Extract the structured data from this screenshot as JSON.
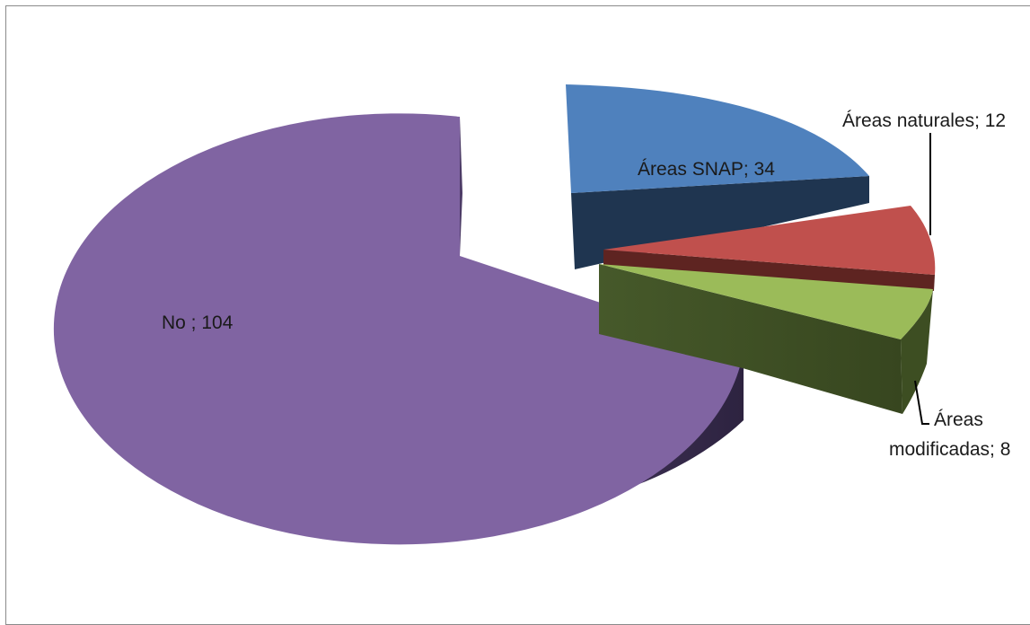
{
  "chart_data": {
    "type": "pie",
    "style": "3d-exploded",
    "slices": [
      {
        "label": "Áreas SNAP",
        "value": 34,
        "text": "Áreas SNAP; 34",
        "color": "#4f81bd"
      },
      {
        "label": "Áreas naturales",
        "value": 12,
        "text": "Áreas naturales; 12",
        "color": "#c0504d"
      },
      {
        "label": "Áreas modificadas",
        "value": 8,
        "text_lines": [
          "Áreas",
          "modificadas; 8"
        ],
        "color": "#9bbb59"
      },
      {
        "label": "No",
        "value": 104,
        "text": "No ; 104",
        "color": "#8064a2"
      }
    ],
    "legend": "none"
  }
}
